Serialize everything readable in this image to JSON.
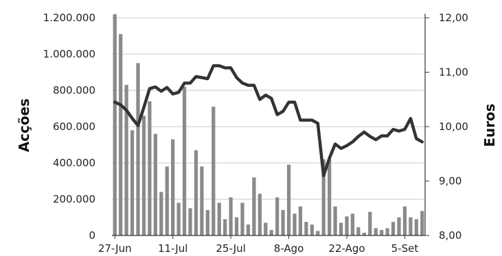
{
  "chart_data": {
    "type": "bar+line",
    "title": "",
    "xlabel": "",
    "x_tick_labels": [
      "27-Jun",
      "11-Jul",
      "25-Jul",
      "8-Ago",
      "22-Ago",
      "5-Set"
    ],
    "y_left": {
      "label": "Acções",
      "ylim": [
        0,
        1200000
      ],
      "ticks": [
        0,
        200000,
        400000,
        600000,
        800000,
        1000000,
        1200000
      ],
      "tick_labels": [
        "0",
        "200.000",
        "400.000",
        "600.000",
        "800.000",
        "1.000.000",
        "1.200.000"
      ]
    },
    "y_right": {
      "label": "Euros",
      "ylim": [
        8.0,
        12.0
      ],
      "ticks": [
        8,
        9,
        10,
        11,
        12
      ],
      "tick_labels": [
        "8,00",
        "9,00",
        "10,00",
        "11,00",
        "12,00"
      ]
    },
    "series": [
      {
        "type": "bar",
        "axis": "left",
        "color": "#8a8a8a",
        "values": [
          1220000,
          1110000,
          830000,
          580000,
          950000,
          660000,
          740000,
          560000,
          240000,
          380000,
          530000,
          180000,
          820000,
          150000,
          470000,
          380000,
          140000,
          710000,
          180000,
          90000,
          210000,
          100000,
          180000,
          60000,
          320000,
          230000,
          70000,
          30000,
          210000,
          140000,
          390000,
          120000,
          160000,
          75000,
          60000,
          25000,
          420000,
          420000,
          160000,
          70000,
          105000,
          120000,
          45000,
          15000,
          130000,
          40000,
          30000,
          40000,
          75000,
          100000,
          160000,
          100000,
          90000,
          135000
        ]
      },
      {
        "type": "line",
        "axis": "right",
        "color": "#333333",
        "values": [
          10.45,
          10.4,
          10.3,
          10.15,
          10.02,
          10.35,
          10.7,
          10.73,
          10.65,
          10.72,
          10.6,
          10.63,
          10.8,
          10.8,
          10.92,
          10.9,
          10.88,
          11.12,
          11.12,
          11.08,
          11.08,
          10.9,
          10.8,
          10.76,
          10.76,
          10.5,
          10.58,
          10.52,
          10.22,
          10.28,
          10.45,
          10.45,
          10.12,
          10.12,
          10.12,
          10.06,
          9.1,
          9.42,
          9.68,
          9.6,
          9.65,
          9.72,
          9.82,
          9.9,
          9.82,
          9.76,
          9.83,
          9.83,
          9.95,
          9.92,
          9.95,
          10.15,
          9.78,
          9.72
        ]
      }
    ],
    "grid": {
      "horizontal": true,
      "vertical": false
    },
    "legend": "none"
  }
}
